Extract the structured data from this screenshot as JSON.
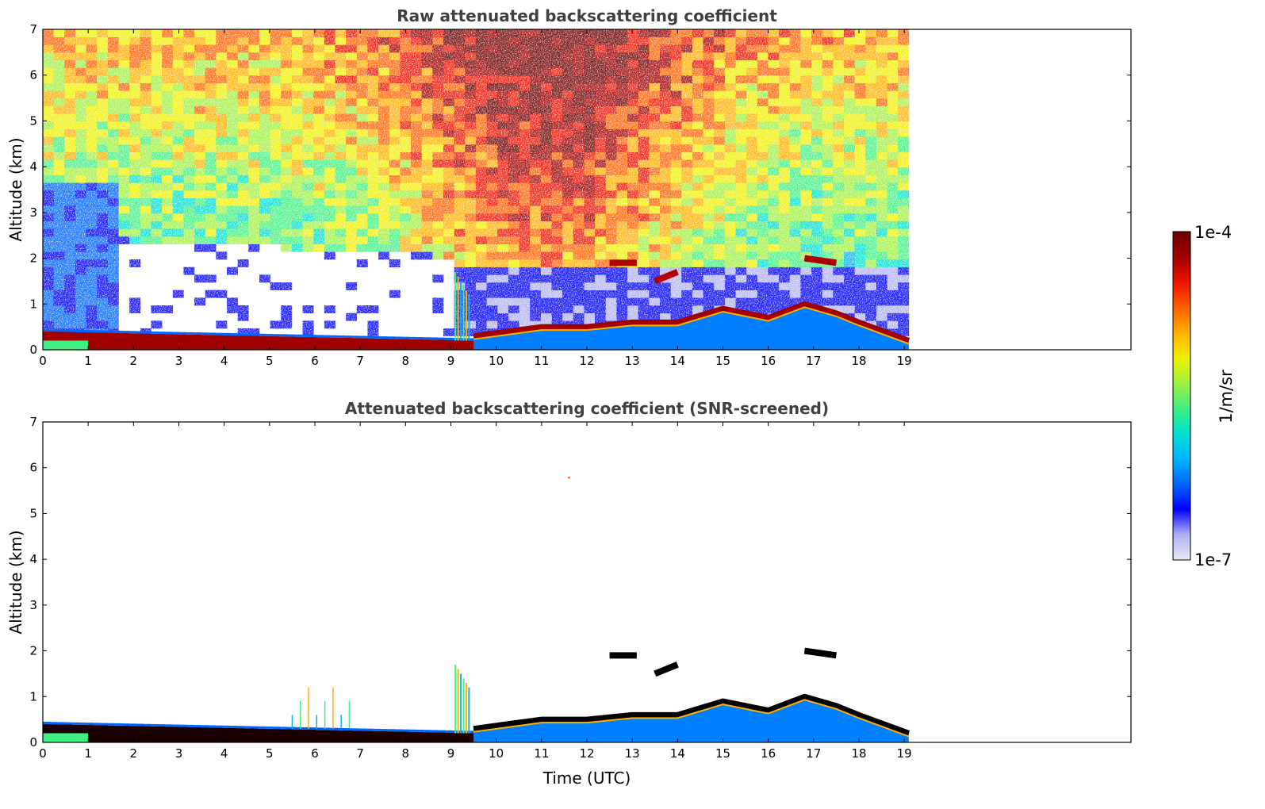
{
  "chart_data": [
    {
      "type": "heatmap",
      "title": "Raw attenuated backscattering coefficient",
      "xlabel": "",
      "ylabel": "Altitude (km)",
      "xlim": [
        0,
        24
      ],
      "ylim": [
        0,
        7
      ],
      "x_ticks": [
        0,
        1,
        2,
        3,
        4,
        5,
        6,
        7,
        8,
        9,
        10,
        11,
        12,
        13,
        14,
        15,
        16,
        17,
        18,
        19
      ],
      "y_ticks": [
        0,
        1,
        2,
        3,
        4,
        5,
        6,
        7
      ],
      "data_extent_x": [
        0,
        19.1
      ],
      "layers": [
        {
          "name": "surface layer",
          "t_start": 0,
          "t_end": 9.5,
          "altitude_top_km": [
            0.4,
            0.15
          ]
        },
        {
          "name": "boundary layer top",
          "x": [
            9.5,
            11,
            12,
            13,
            14,
            15,
            16,
            16.8,
            17.5,
            18,
            19.1
          ],
          "y": [
            0.3,
            0.5,
            0.5,
            0.6,
            0.6,
            0.9,
            0.7,
            1.0,
            0.8,
            0.6,
            0.2
          ]
        },
        {
          "name": "elevated cloud",
          "x": [
            12.5,
            13.1
          ],
          "y": [
            1.9,
            1.9
          ]
        },
        {
          "name": "elevated cloud",
          "x": [
            16.8,
            17.5
          ],
          "y": [
            2.0,
            1.9
          ]
        },
        {
          "name": "elevated cloud",
          "x": [
            13.5,
            14.0
          ],
          "y": [
            1.5,
            1.7
          ]
        }
      ],
      "grid": false
    },
    {
      "type": "heatmap",
      "title": "Attenuated backscattering coefficient (SNR-screened)",
      "xlabel": "Time (UTC)",
      "ylabel": "Altitude (km)",
      "xlim": [
        0,
        24
      ],
      "ylim": [
        0,
        7
      ],
      "x_ticks": [
        0,
        1,
        2,
        3,
        4,
        5,
        6,
        7,
        8,
        9,
        10,
        11,
        12,
        13,
        14,
        15,
        16,
        17,
        18,
        19
      ],
      "y_ticks": [
        0,
        1,
        2,
        3,
        4,
        5,
        6,
        7
      ],
      "data_extent_x": [
        0,
        19.1
      ],
      "grid": false
    }
  ],
  "colorbar": {
    "label": "1/m/sr",
    "max_label": "1e-4",
    "min_label": "1e-7",
    "scale": "log",
    "range": [
      1e-07,
      0.0001
    ],
    "colormap": [
      "#e8e8f8",
      "#b0b0f0",
      "#0000ff",
      "#0066ff",
      "#00b4ff",
      "#00e0d0",
      "#40f080",
      "#a0f040",
      "#f0f000",
      "#ffb000",
      "#ff6000",
      "#f01000",
      "#a00000",
      "#700000"
    ]
  }
}
